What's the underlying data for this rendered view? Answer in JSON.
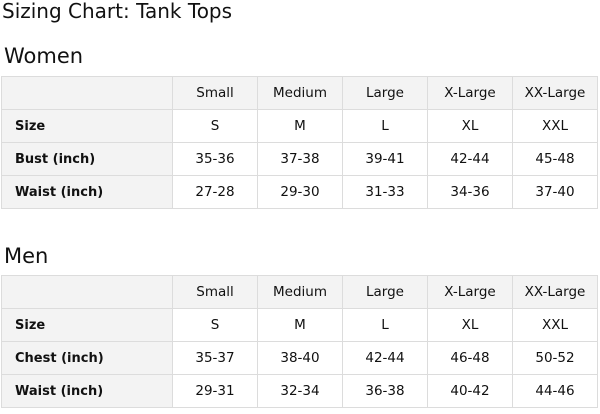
{
  "title": "Sizing Chart: Tank Tops",
  "sections": [
    {
      "heading": "Women",
      "columns": [
        "Small",
        "Medium",
        "Large",
        "X-Large",
        "XX-Large"
      ],
      "rows": [
        {
          "label": "Size",
          "values": [
            "S",
            "M",
            "L",
            "XL",
            "XXL"
          ]
        },
        {
          "label": "Bust (inch)",
          "values": [
            "35-36",
            "37-38",
            "39-41",
            "42-44",
            "45-48"
          ]
        },
        {
          "label": "Waist (inch)",
          "values": [
            "27-28",
            "29-30",
            "31-33",
            "34-36",
            "37-40"
          ]
        }
      ]
    },
    {
      "heading": "Men",
      "columns": [
        "Small",
        "Medium",
        "Large",
        "X-Large",
        "XX-Large"
      ],
      "rows": [
        {
          "label": "Size",
          "values": [
            "S",
            "M",
            "L",
            "XL",
            "XXL"
          ]
        },
        {
          "label": "Chest (inch)",
          "values": [
            "35-37",
            "38-40",
            "42-44",
            "46-48",
            "50-52"
          ]
        },
        {
          "label": "Waist (inch)",
          "values": [
            "29-31",
            "32-34",
            "36-38",
            "40-42",
            "44-46"
          ]
        }
      ]
    }
  ]
}
